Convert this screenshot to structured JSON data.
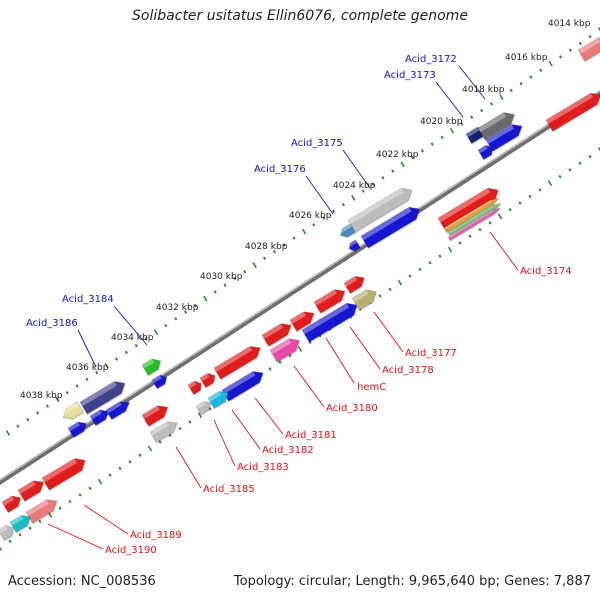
{
  "title": "Solibacter usitatus Ellin6076, complete genome",
  "footer": {
    "accession": "Accession: NC_008536",
    "summary": "Topology: circular; Length: 9,965,640 bp; Genes: 7,887"
  },
  "colors": {
    "backbone": "#8c8c8c",
    "tick_dots": "#2e8b2e",
    "forward_label": "#1414d2",
    "reverse_label": "#dc1414",
    "kbp_label": "#222222"
  },
  "kbp_labels": [
    "4014 kbp",
    "4016 kbp",
    "4018 kbp",
    "4020 kbp",
    "4022 kbp",
    "4024 kbp",
    "4026 kbp",
    "4028 kbp",
    "4030 kbp",
    "4032 kbp",
    "4034 kbp",
    "4036 kbp",
    "4038 kbp"
  ],
  "forward_gene_labels": [
    "Acid_3172",
    "Acid_3173",
    "Acid_3175",
    "Acid_3176",
    "Acid_3184",
    "Acid_3186"
  ],
  "reverse_gene_labels": [
    "Acid_3174",
    "Acid_3177",
    "Acid_3178",
    "hemC",
    "Acid_3180",
    "Acid_3181",
    "Acid_3182",
    "Acid_3183",
    "Acid_3185",
    "Acid_3189",
    "Acid_3190"
  ]
}
